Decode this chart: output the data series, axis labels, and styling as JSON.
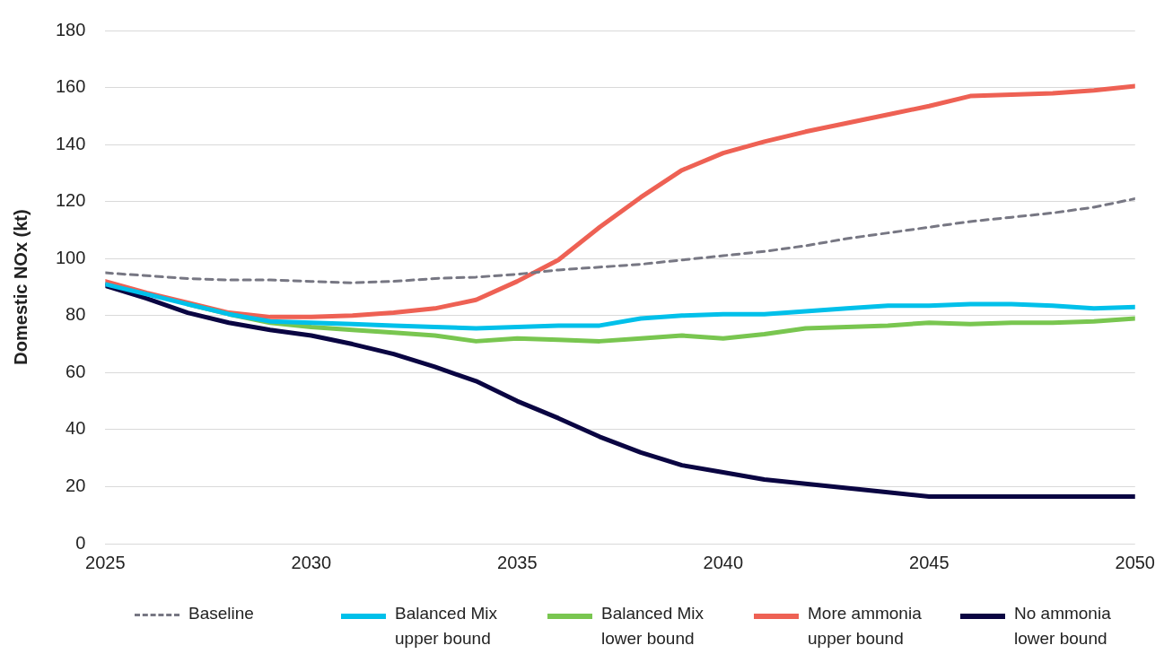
{
  "chart_data": {
    "type": "line",
    "ylabel": "Domestic NOx (kt)",
    "x": [
      2025,
      2026,
      2027,
      2028,
      2029,
      2030,
      2031,
      2032,
      2033,
      2034,
      2035,
      2036,
      2037,
      2038,
      2039,
      2040,
      2041,
      2042,
      2043,
      2044,
      2045,
      2046,
      2047,
      2048,
      2049,
      2050
    ],
    "xlim": [
      2025,
      2050
    ],
    "xticks": [
      2025,
      2030,
      2035,
      2040,
      2045,
      2050
    ],
    "ylim": [
      0,
      180
    ],
    "yticks": [
      0,
      20,
      40,
      60,
      80,
      100,
      120,
      140,
      160,
      180
    ],
    "grid": "y",
    "legend": "bottom",
    "marker": "none",
    "series": [
      {
        "name": "Baseline",
        "color": "#777783",
        "line_style": "dashed",
        "values": [
          95,
          94,
          93,
          92.5,
          92.5,
          92,
          91.5,
          92,
          93,
          93.5,
          94.5,
          96,
          97,
          98,
          99.5,
          101,
          102.5,
          104.5,
          107,
          109,
          111,
          113,
          114.5,
          116,
          118,
          121
        ]
      },
      {
        "name": "Balanced Mix upper bound",
        "color": "#00c0ea",
        "line_style": "solid",
        "values": [
          91,
          87.5,
          84,
          80.5,
          78,
          77.5,
          77,
          76.5,
          76,
          75.5,
          76,
          76.5,
          76.5,
          79,
          80,
          80.5,
          80.5,
          81.5,
          82.5,
          83.5,
          83.5,
          84,
          84,
          83.5,
          82.5,
          83
        ]
      },
      {
        "name": "Balanced Mix lower bound",
        "color": "#79c650",
        "line_style": "solid",
        "values": [
          null,
          null,
          84,
          80.5,
          77.5,
          76,
          75,
          74,
          73,
          71,
          72,
          71.5,
          71,
          72,
          73,
          72,
          73.5,
          75.5,
          76,
          76.5,
          77.5,
          77,
          77.5,
          77.5,
          78,
          79
        ]
      },
      {
        "name": "More ammonia upper bound",
        "color": "#ee6154",
        "line_style": "solid",
        "values": [
          92,
          88,
          84.5,
          81,
          79.5,
          79.5,
          80,
          81,
          82.5,
          85.5,
          92,
          99.5,
          111,
          121.5,
          131,
          137,
          141,
          144.5,
          147.5,
          150.5,
          153.5,
          157,
          157.5,
          158,
          159,
          160.5
        ]
      },
      {
        "name": "No ammonia lower bound",
        "color": "#0a0542",
        "line_style": "solid",
        "values": [
          90.5,
          86,
          81,
          77.5,
          75,
          73,
          70,
          66.5,
          62,
          57,
          50,
          44,
          37.5,
          32,
          27.5,
          25,
          22.5,
          21,
          19.5,
          18,
          16.5,
          16.5,
          16.5,
          16.5,
          16.5,
          16.5
        ]
      }
    ]
  }
}
